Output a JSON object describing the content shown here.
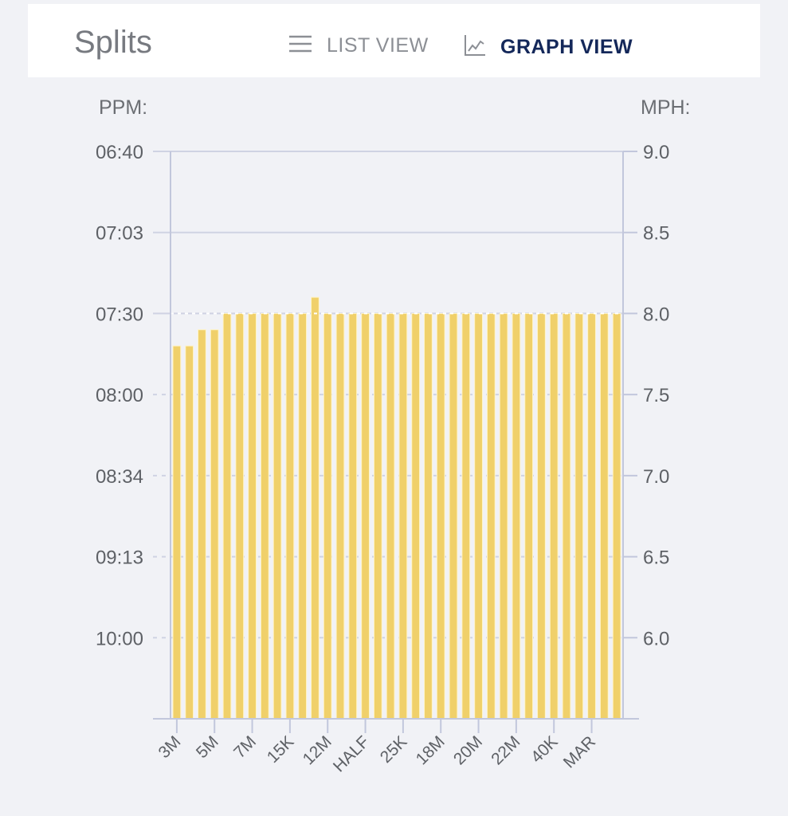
{
  "header": {
    "title": "Splits",
    "list_view_label": "LIST VIEW",
    "graph_view_label": "GRAPH VIEW",
    "list_icon": "list-icon",
    "graph_icon": "line-chart-icon",
    "active_view": "graph"
  },
  "chart_data": {
    "type": "bar",
    "left_axis_title": "PPM:",
    "right_axis_title": "MPH:",
    "right_axis_ticks": [
      "9.0",
      "8.5",
      "8.0",
      "7.5",
      "7.0",
      "6.5",
      "6.0"
    ],
    "left_axis_ticks": [
      "06:40",
      "07:03",
      "07:30",
      "08:00",
      "08:34",
      "09:13",
      "10:00"
    ],
    "y_range_mph": [
      5.5,
      9.0
    ],
    "grid": true,
    "x_tick_labels": [
      "3M",
      "5M",
      "7M",
      "15K",
      "12M",
      "HALF",
      "25K",
      "18M",
      "20M",
      "22M",
      "40K",
      "MAR"
    ],
    "x_tick_bar_index": [
      0,
      3,
      6,
      9,
      12,
      15,
      18,
      21,
      24,
      27,
      30,
      33
    ],
    "values": [
      7.8,
      7.8,
      7.9,
      7.9,
      8.0,
      8.0,
      8.0,
      8.0,
      8.0,
      8.0,
      8.0,
      8.1,
      8.0,
      8.0,
      8.0,
      8.0,
      8.0,
      8.0,
      8.0,
      8.0,
      8.0,
      8.0,
      8.0,
      8.0,
      8.0,
      8.0,
      8.0,
      8.0,
      8.0,
      8.0,
      8.0,
      8.0,
      8.0,
      8.0,
      8.0,
      8.0
    ],
    "units": "MPH",
    "colors": {
      "bar": "#f0d06a",
      "grid": "#cfd3e3",
      "axis": "#c2c7dc",
      "average_line": "#ffffff"
    }
  }
}
